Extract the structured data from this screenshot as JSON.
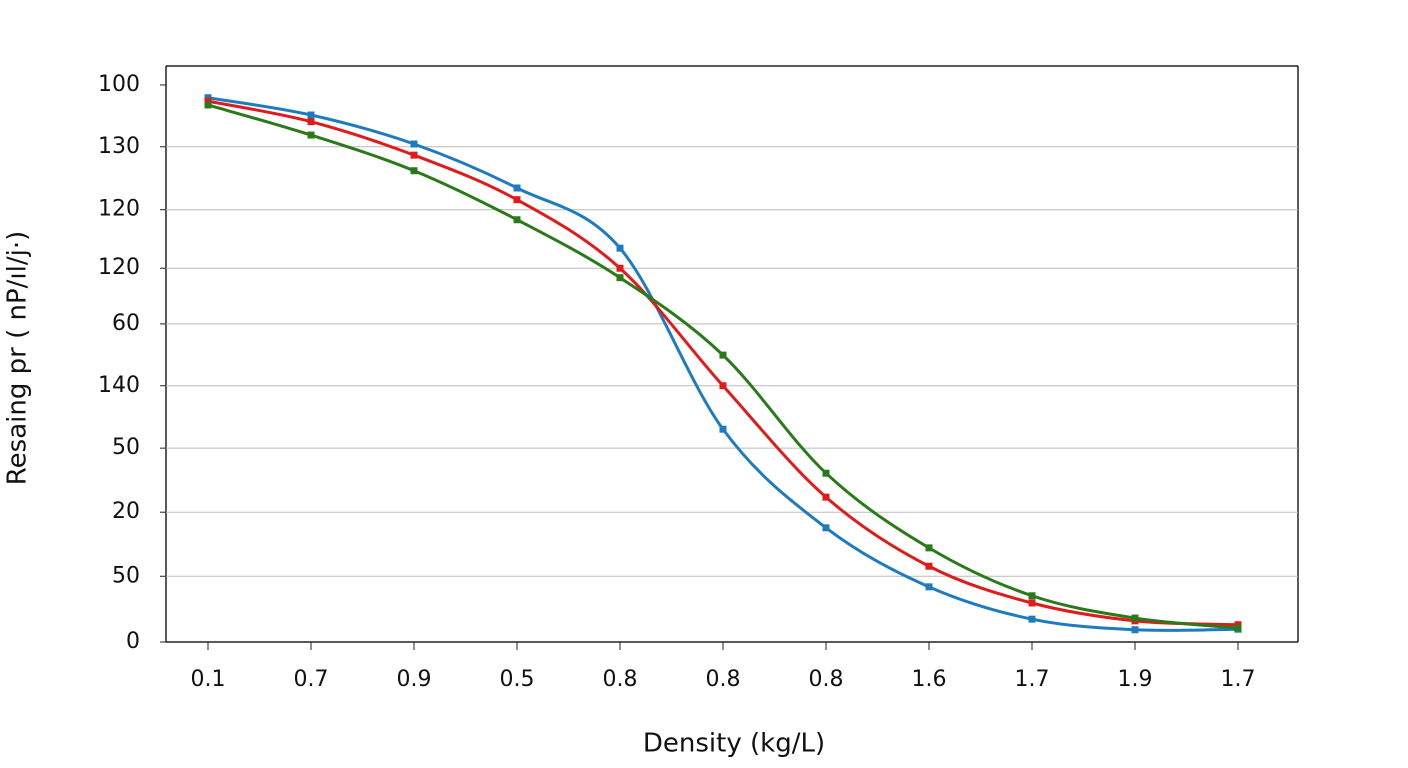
{
  "chart_data": {
    "type": "line",
    "x_label": "Density (kg/L)",
    "y_label": "Resaing pr ( nP/ıl/j·)",
    "categories": [
      "0.1",
      "0.7",
      "0.9",
      "0.5",
      "0.8",
      "0.8",
      "0.8",
      "1.6",
      "1.7",
      "1.9",
      "1.7"
    ],
    "series": [
      {
        "color": "#1f7bbf",
        "values": [
          97.7,
          94.6,
          89.4,
          81.5,
          70.7,
          38.2,
          20.5,
          9.9,
          4.1,
          2.2,
          2.3
        ]
      },
      {
        "color": "#e01b1b",
        "values": [
          97.1,
          93.4,
          87.4,
          79.4,
          67.1,
          46.0,
          26.0,
          13.6,
          7.0,
          3.8,
          3.1
        ]
      },
      {
        "color": "#2a7a1a",
        "values": [
          96.4,
          91.0,
          84.6,
          75.8,
          65.4,
          51.5,
          30.3,
          16.9,
          8.3,
          4.3,
          2.5
        ]
      }
    ],
    "ylim": [
      0,
      103.4
    ],
    "yticks": [
      0,
      {
        "value": 11.8,
        "label": "50"
      },
      {
        "value": 23.3,
        "label": "20"
      },
      {
        "value": 34.8,
        "label": "50"
      },
      {
        "value": 46.0,
        "label": "140"
      },
      {
        "value": 57.1,
        "label": "60"
      },
      {
        "value": 67.1,
        "label": "120"
      },
      {
        "value": 77.6,
        "label": "120"
      },
      {
        "value": 88.9,
        "label": "130"
      },
      100
    ],
    "grid": true
  }
}
